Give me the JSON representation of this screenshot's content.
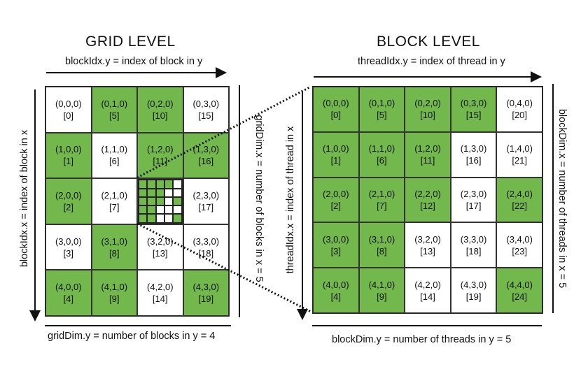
{
  "grid_level": {
    "title": "GRID LEVEL",
    "top_label": "blockIdx.y = index of block in y",
    "left_label": "blockIdx.x = index of block in x",
    "right_label": "gridDim.x = number of blocks in x = 5",
    "bottom_label": "gridDim.y = number of blocks in y = 4",
    "cells": [
      {
        "coord": "(0,0,0)",
        "index": "[0]",
        "fill": "white"
      },
      {
        "coord": "(0,1,0)",
        "index": "[5]",
        "fill": "green"
      },
      {
        "coord": "(0,2,0)",
        "index": "[10]",
        "fill": "green"
      },
      {
        "coord": "(0,3,0)",
        "index": "[15]",
        "fill": "white"
      },
      {
        "coord": "(1,0,0)",
        "index": "[1]",
        "fill": "green"
      },
      {
        "coord": "(1,1,0)",
        "index": "[6]",
        "fill": "white"
      },
      {
        "coord": "(1,2,0)",
        "index": "[11]",
        "fill": "green"
      },
      {
        "coord": "(1,3,0)",
        "index": "[16]",
        "fill": "green"
      },
      {
        "coord": "(2,0,0)",
        "index": "[2]",
        "fill": "green"
      },
      {
        "coord": "(2,1,0)",
        "index": "[7]",
        "fill": "white"
      },
      {
        "coord": "",
        "index": "",
        "fill": "mini"
      },
      {
        "coord": "(2,3,0)",
        "index": "[17]",
        "fill": "white"
      },
      {
        "coord": "(3,0,0)",
        "index": "[3]",
        "fill": "white"
      },
      {
        "coord": "(3,1,0)",
        "index": "[8]",
        "fill": "green"
      },
      {
        "coord": "(3,2,0)",
        "index": "[13]",
        "fill": "white"
      },
      {
        "coord": "(3,3,0)",
        "index": "[18]",
        "fill": "white"
      },
      {
        "coord": "(4,0,0)",
        "index": "[4]",
        "fill": "green"
      },
      {
        "coord": "(4,1,0)",
        "index": "[9]",
        "fill": "green"
      },
      {
        "coord": "(4,2,0)",
        "index": "[14]",
        "fill": "white"
      },
      {
        "coord": "(4,3,0)",
        "index": "[19]",
        "fill": "green"
      }
    ]
  },
  "block_level": {
    "title": "BLOCK LEVEL",
    "top_label": "threadIdx.y = index of thread in y",
    "left_label": "threadIdx.x = index of thread in x",
    "right_label": "blockDim.x = number of threads in x = 5",
    "bottom_label": "blockDim.y = number of threads in y = 5",
    "cells": [
      {
        "coord": "(0,0,0)",
        "index": "[0]",
        "fill": "green"
      },
      {
        "coord": "(0,1,0)",
        "index": "[5]",
        "fill": "green"
      },
      {
        "coord": "(0,2,0)",
        "index": "[10]",
        "fill": "green"
      },
      {
        "coord": "(0,3,0)",
        "index": "[15]",
        "fill": "green"
      },
      {
        "coord": "(0,4,0)",
        "index": "[20]",
        "fill": "white"
      },
      {
        "coord": "(1,0,0)",
        "index": "[1]",
        "fill": "green"
      },
      {
        "coord": "(1,1,0)",
        "index": "[6]",
        "fill": "green"
      },
      {
        "coord": "(1,2,0)",
        "index": "[11]",
        "fill": "green"
      },
      {
        "coord": "(1,3,0)",
        "index": "[16]",
        "fill": "white"
      },
      {
        "coord": "(1,4,0)",
        "index": "[21]",
        "fill": "white"
      },
      {
        "coord": "(2,0,0)",
        "index": "[2]",
        "fill": "green"
      },
      {
        "coord": "(2,1,0)",
        "index": "[7]",
        "fill": "green"
      },
      {
        "coord": "(2,2,0)",
        "index": "[12]",
        "fill": "green"
      },
      {
        "coord": "(2,3,0)",
        "index": "[17]",
        "fill": "white"
      },
      {
        "coord": "(2,4,0)",
        "index": "[22]",
        "fill": "green"
      },
      {
        "coord": "(3,0,0)",
        "index": "[3]",
        "fill": "green"
      },
      {
        "coord": "(3,1,0)",
        "index": "[8]",
        "fill": "green"
      },
      {
        "coord": "(3,2,0)",
        "index": "[13]",
        "fill": "white"
      },
      {
        "coord": "(3,3,0)",
        "index": "[18]",
        "fill": "white"
      },
      {
        "coord": "(3,4,0)",
        "index": "[23]",
        "fill": "white"
      },
      {
        "coord": "(4,0,0)",
        "index": "[4]",
        "fill": "green"
      },
      {
        "coord": "(4,1,0)",
        "index": "[9]",
        "fill": "green"
      },
      {
        "coord": "(4,2,0)",
        "index": "[14]",
        "fill": "white"
      },
      {
        "coord": "(4,3,0)",
        "index": "[19]",
        "fill": "white"
      },
      {
        "coord": "(4,4,0)",
        "index": "[24]",
        "fill": "green"
      }
    ]
  },
  "mini_block_fills": [
    "green",
    "green",
    "green",
    "green",
    "white",
    "green",
    "green",
    "green",
    "white",
    "white",
    "green",
    "green",
    "green",
    "white",
    "green",
    "green",
    "green",
    "white",
    "white",
    "white",
    "green",
    "green",
    "white",
    "white",
    "green"
  ],
  "colors": {
    "green": "#72b84c",
    "white": "#ffffff",
    "line": "#111111"
  }
}
